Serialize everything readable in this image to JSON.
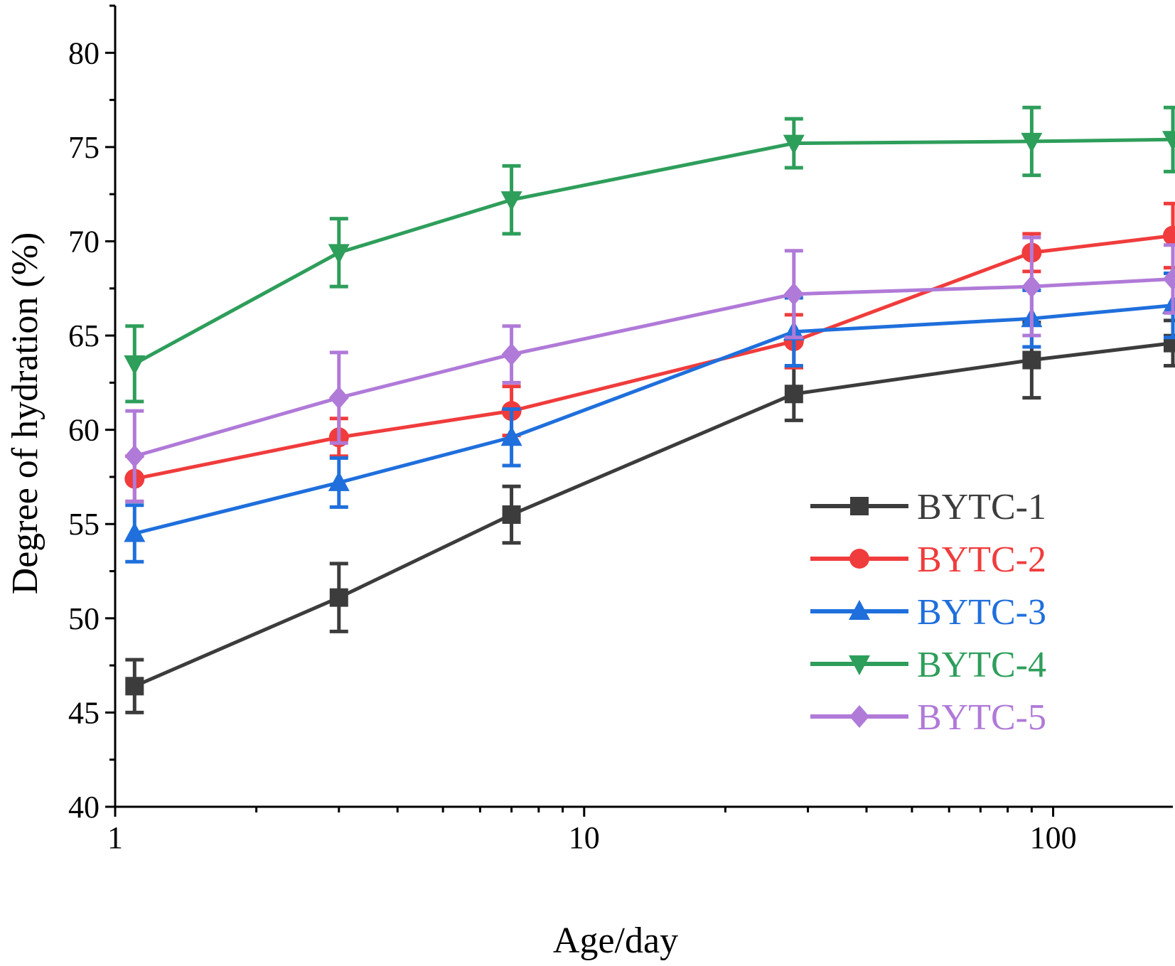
{
  "chart_data": {
    "type": "line",
    "title": "",
    "xlabel": "Age/day",
    "ylabel": "Degree of hydration (%)",
    "xscale": "log",
    "xlim": [
      1,
      180
    ],
    "ylim": [
      40,
      82.5
    ],
    "x_ticks": [
      1,
      10,
      100
    ],
    "x_tick_labels": [
      "1",
      "10",
      "100"
    ],
    "y_ticks": [
      40,
      45,
      50,
      55,
      60,
      65,
      70,
      75,
      80
    ],
    "y_tick_labels": [
      "40",
      "45",
      "50",
      "55",
      "60",
      "65",
      "70",
      "75",
      "80"
    ],
    "x": [
      1.1,
      3,
      7,
      28,
      90,
      180
    ],
    "legend_position": "lower-right",
    "series": [
      {
        "name": "BYTC-1",
        "color": "#3c3c3c",
        "marker": "square",
        "values": [
          46.4,
          51.1,
          55.5,
          61.9,
          63.7,
          64.6
        ],
        "errors": [
          1.4,
          1.8,
          1.5,
          1.4,
          2.0,
          1.2
        ]
      },
      {
        "name": "BYTC-2",
        "color": "#f03c3c",
        "marker": "circle",
        "values": [
          57.4,
          59.6,
          61.0,
          64.7,
          69.4,
          70.3
        ],
        "errors": [
          1.2,
          1.0,
          1.3,
          1.4,
          1.0,
          1.7
        ]
      },
      {
        "name": "BYTC-3",
        "color": "#1f6fdc",
        "marker": "triangle-up",
        "values": [
          54.5,
          57.2,
          59.6,
          65.2,
          65.9,
          66.6
        ],
        "errors": [
          1.5,
          1.3,
          1.5,
          1.8,
          1.5,
          1.7
        ]
      },
      {
        "name": "BYTC-4",
        "color": "#2e9e5b",
        "marker": "triangle-down",
        "values": [
          63.5,
          69.4,
          72.2,
          75.2,
          75.3,
          75.4
        ],
        "errors": [
          2.0,
          1.8,
          1.8,
          1.3,
          1.8,
          1.7
        ]
      },
      {
        "name": "BYTC-5",
        "color": "#b07ad8",
        "marker": "diamond",
        "values": [
          58.6,
          61.7,
          64.0,
          67.2,
          67.6,
          68.0
        ],
        "errors": [
          2.4,
          2.4,
          1.5,
          2.3,
          2.6,
          1.8
        ]
      }
    ]
  }
}
